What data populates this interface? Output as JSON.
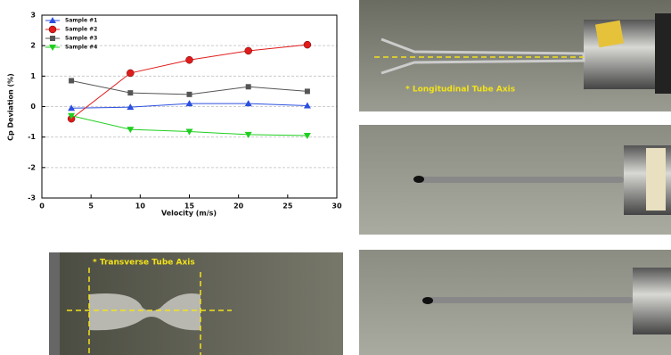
{
  "chart_data": {
    "type": "line",
    "xlabel": "Velocity (m/s)",
    "ylabel": "Cp Deviation (%)",
    "x": [
      3,
      9,
      15,
      21,
      27
    ],
    "series": [
      {
        "name": "Sample #1",
        "color": "#2b4fe0",
        "marker": "triangle-up",
        "values": [
          -0.05,
          -0.02,
          0.1,
          0.1,
          0.03
        ]
      },
      {
        "name": "Sample #2",
        "color": "#e01b1b",
        "marker": "circle",
        "values": [
          -0.4,
          1.1,
          1.53,
          1.83,
          2.03
        ]
      },
      {
        "name": "Sample #3",
        "color": "#555555",
        "marker": "square",
        "values": [
          0.85,
          0.45,
          0.4,
          0.65,
          0.5
        ]
      },
      {
        "name": "Sample #4",
        "color": "#1fcf1f",
        "marker": "triangle-down",
        "values": [
          -0.3,
          -0.75,
          -0.82,
          -0.92,
          -0.95
        ]
      }
    ],
    "xlim": [
      0,
      30
    ],
    "xticks": [
      0,
      5,
      10,
      15,
      20,
      25,
      30
    ],
    "ylim": [
      -3,
      3
    ],
    "yticks": [
      -3,
      -2,
      -1,
      0,
      1,
      2,
      3
    ],
    "grid": true,
    "legend": "upper left"
  },
  "photos": {
    "longitudinal": "* Longitudinal Tube Axis",
    "transverse": "* Transverse Tube Axis"
  }
}
